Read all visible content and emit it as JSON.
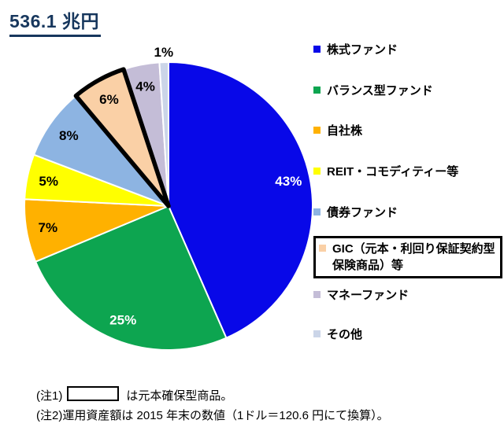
{
  "title": "536.1 兆円",
  "chart_data": {
    "type": "pie",
    "title": "536.1 兆円",
    "legend_position": "right",
    "outline_color": "#000000",
    "separator_color": "#FFFFFF",
    "slices": [
      {
        "label": "株式ファンド",
        "value": 43,
        "pct_label": "43%",
        "color": "#0808E8",
        "text_color": "#FFFFFF",
        "outlined": false,
        "label_outside": false
      },
      {
        "label": "バランス型ファンド",
        "value": 25,
        "pct_label": "25%",
        "color": "#0DA550",
        "text_color": "#FFFFFF",
        "outlined": false,
        "label_outside": false
      },
      {
        "label": "自社株",
        "value": 7,
        "pct_label": "7%",
        "color": "#FFB100",
        "text_color": "#000000",
        "outlined": false,
        "label_outside": false
      },
      {
        "label": "REIT・コモディティー等",
        "value": 5,
        "pct_label": "5%",
        "color": "#FFFF00",
        "text_color": "#000000",
        "outlined": false,
        "label_outside": false
      },
      {
        "label": "債券ファンド",
        "value": 8,
        "pct_label": "8%",
        "color": "#8DB4E2",
        "text_color": "#000000",
        "outlined": false,
        "label_outside": false
      },
      {
        "label": "GIC（元本・利回り保証契約型保険商品）等",
        "value": 6,
        "pct_label": "6%",
        "color": "#FAD0A6",
        "text_color": "#000000",
        "outlined": true,
        "label_outside": false
      },
      {
        "label": "マネーファンド",
        "value": 4,
        "pct_label": "4%",
        "color": "#C4BDD7",
        "text_color": "#000000",
        "outlined": false,
        "label_outside": false
      },
      {
        "label": "その他",
        "value": 1,
        "pct_label": "1%",
        "color": "#CBD5E8",
        "text_color": "#000000",
        "outlined": false,
        "label_outside": true
      }
    ]
  },
  "notes": [
    {
      "prefix": "(注1)",
      "has_box": true,
      "text": "は元本確保型商品。"
    },
    {
      "prefix": "(注2)",
      "has_box": false,
      "text": "運用資産額は 2015 年末の数値（1ドル＝120.6 円にて換算）。"
    }
  ]
}
